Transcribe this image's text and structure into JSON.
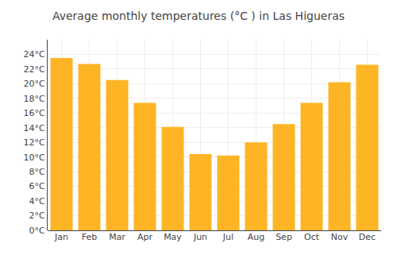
{
  "chart_data": {
    "type": "bar",
    "title": "Average monthly temperatures (°C ) in Las Higueras",
    "categories": [
      "Jan",
      "Feb",
      "Mar",
      "Apr",
      "May",
      "Jun",
      "Jul",
      "Aug",
      "Sep",
      "Oct",
      "Nov",
      "Dec"
    ],
    "values": [
      23.5,
      22.7,
      20.5,
      17.4,
      14.1,
      10.4,
      10.2,
      12.0,
      14.5,
      17.4,
      20.2,
      22.6
    ],
    "color": "#FDB525",
    "ylim": [
      0,
      26
    ],
    "yticks": [
      {
        "value": 0,
        "label": "0°C"
      },
      {
        "value": 2,
        "label": "2°C"
      },
      {
        "value": 4,
        "label": "4°C"
      },
      {
        "value": 6,
        "label": "6°C"
      },
      {
        "value": 8,
        "label": "8°C"
      },
      {
        "value": 10,
        "label": "10°C"
      },
      {
        "value": 12,
        "label": "12°C"
      },
      {
        "value": 14,
        "label": "14°C"
      },
      {
        "value": 16,
        "label": "16°C"
      },
      {
        "value": 18,
        "label": "18°C"
      },
      {
        "value": 20,
        "label": "20°C"
      },
      {
        "value": 22,
        "label": "22°C"
      },
      {
        "value": 24,
        "label": "24°C"
      }
    ],
    "grid": true
  }
}
